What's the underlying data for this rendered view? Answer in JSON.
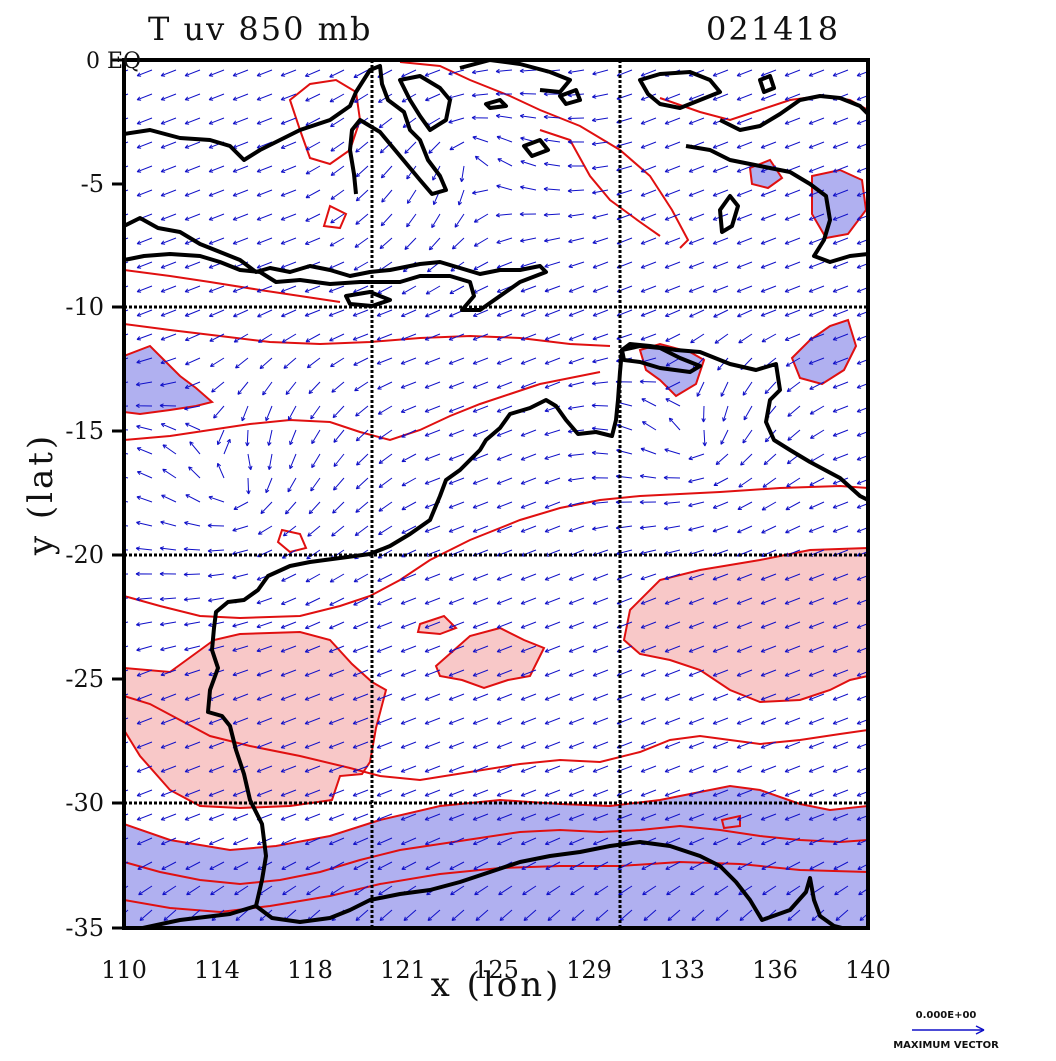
{
  "title": "T uv 850 mb",
  "date_code": "021418",
  "x_axis": {
    "label": "x (lon)",
    "ticks": [
      "110",
      "114",
      "118",
      "121",
      "125",
      "129",
      "133",
      "136",
      "140"
    ]
  },
  "y_axis": {
    "label": "y (lat)",
    "ticks": [
      "0 EQ",
      "-5",
      "-10",
      "-15",
      "-20",
      "-25",
      "-30",
      "-35"
    ]
  },
  "legend": {
    "vector_magnitude": "0.000E+00",
    "vector_caption": "MAXIMUM VECTOR"
  },
  "map": {
    "region": "Western & Northern Australia / Indonesia",
    "lon_range": [
      110,
      140
    ],
    "lat_range": [
      -35,
      0
    ],
    "colors": {
      "coast": "#000000",
      "contour": "#e01010",
      "warm_fill": "#f8c8c8",
      "cold_fill": "#b0b0f0",
      "vectors": "#1010c8",
      "grid": "#000000"
    }
  }
}
